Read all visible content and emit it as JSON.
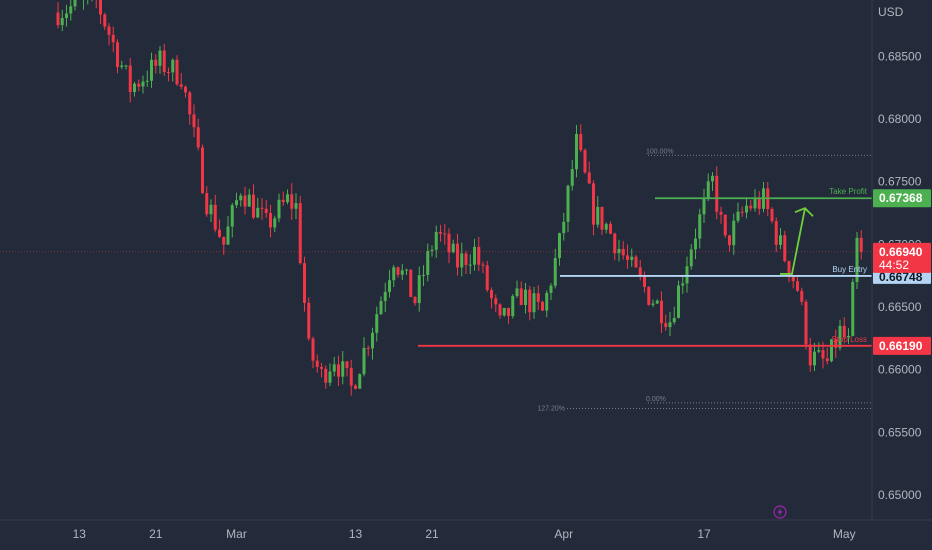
{
  "chart_data": {
    "type": "candlestick",
    "currency": "USD",
    "ylim": [
      0.648,
      0.6895
    ],
    "y_ticks": [
      0.685,
      0.68,
      0.675,
      0.67,
      0.665,
      0.66,
      0.655,
      0.65
    ],
    "y_tick_labels": [
      "0.68500",
      "0.68000",
      "0.67500",
      "0.67000",
      "0.66500",
      "0.66000",
      "0.65500",
      "0.65000"
    ],
    "x_labels": [
      {
        "label": "13",
        "bar": 5
      },
      {
        "label": "21",
        "bar": 23
      },
      {
        "label": "Mar",
        "bar": 42
      },
      {
        "label": "13",
        "bar": 70
      },
      {
        "label": "21",
        "bar": 88
      },
      {
        "label": "Apr",
        "bar": 119
      },
      {
        "label": "17",
        "bar": 152
      },
      {
        "label": "May",
        "bar": 185
      }
    ],
    "candle_count": 190,
    "price_path": [
      [
        0,
        0.6885
      ],
      [
        10,
        0.6895
      ],
      [
        18,
        0.6825
      ],
      [
        25,
        0.6845
      ],
      [
        30,
        0.6835
      ],
      [
        36,
        0.6735
      ],
      [
        40,
        0.67
      ],
      [
        44,
        0.6745
      ],
      [
        50,
        0.6715
      ],
      [
        55,
        0.6735
      ],
      [
        57,
        0.673
      ],
      [
        60,
        0.6615
      ],
      [
        63,
        0.6595
      ],
      [
        66,
        0.661
      ],
      [
        70,
        0.6585
      ],
      [
        75,
        0.6635
      ],
      [
        80,
        0.669
      ],
      [
        85,
        0.6655
      ],
      [
        90,
        0.671
      ],
      [
        95,
        0.6685
      ],
      [
        99,
        0.6695
      ],
      [
        105,
        0.6635
      ],
      [
        110,
        0.666
      ],
      [
        115,
        0.6645
      ],
      [
        119,
        0.67
      ],
      [
        123,
        0.678
      ],
      [
        127,
        0.6725
      ],
      [
        130,
        0.6715
      ],
      [
        135,
        0.6685
      ],
      [
        140,
        0.666
      ],
      [
        145,
        0.664
      ],
      [
        150,
        0.67
      ],
      [
        155,
        0.675
      ],
      [
        158,
        0.67
      ],
      [
        163,
        0.673
      ],
      [
        167,
        0.6735
      ],
      [
        172,
        0.669
      ],
      [
        175,
        0.6665
      ],
      [
        178,
        0.661
      ],
      [
        182,
        0.6605
      ],
      [
        185,
        0.663
      ],
      [
        187,
        0.662
      ],
      [
        189,
        0.67
      ]
    ],
    "levels": [
      {
        "name": "Take Profit",
        "price": 0.67368,
        "label": "0.67368",
        "color": "#4caf50"
      },
      {
        "name": "Buy Entry",
        "price": 0.66748,
        "label": "0.66748",
        "color": "#b3d4f2"
      },
      {
        "name": "Stop Loss",
        "price": 0.6619,
        "label": "0.66190",
        "color": "#f23645"
      }
    ],
    "current_price": {
      "label": "0.66940",
      "value": 0.6694,
      "countdown": "44:52",
      "color": "#f23645"
    },
    "fib_labels": [
      "100.00%",
      "0.00%",
      "127.20%"
    ],
    "fib_prices": [
      0.6771,
      0.65735,
      0.6569
    ],
    "colors": {
      "up": "#4caf50",
      "down": "#f23645",
      "background": "#232b3b",
      "text": "#b2b5be"
    }
  }
}
